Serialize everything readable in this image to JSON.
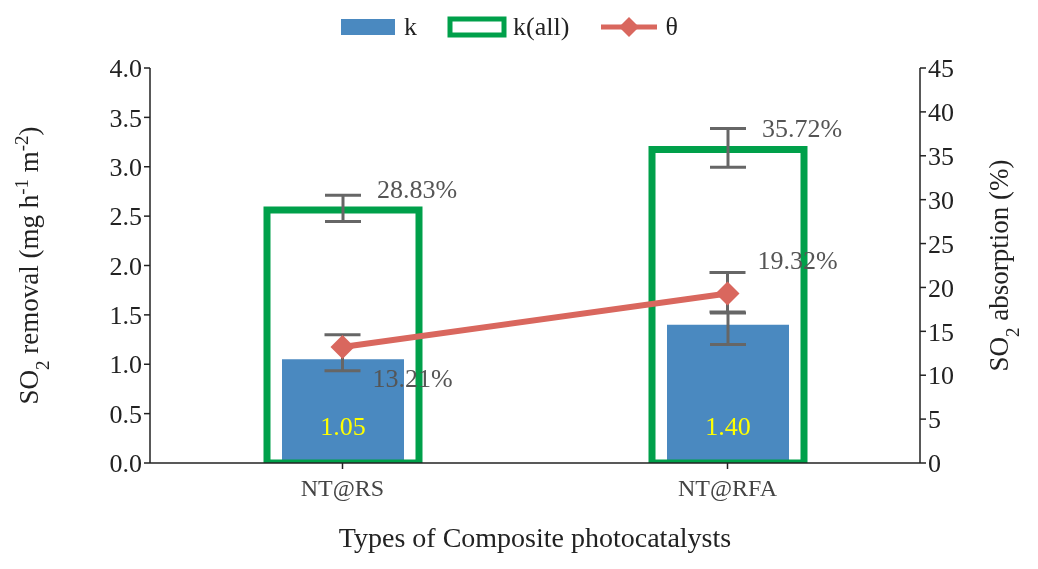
{
  "chart_data": {
    "type": "bar",
    "xlabel": "Types of Composite photocatalysts",
    "ylabel": "SO$_{2}$ removal (mg h$^{-1}$ m$^{-2}$)",
    "y2label": "SO$_{2}$ absorption (%)",
    "categories": [
      "NT@RS",
      "NT@RFA"
    ],
    "series": [
      {
        "name": "k",
        "color": "#4a89c0",
        "values": [
          1.05,
          1.4
        ],
        "value_labels": [
          "1.05",
          "1.40"
        ],
        "errors": [
          null,
          [
            1.2,
            1.52
          ]
        ]
      },
      {
        "name": "k(all)",
        "axis": "y2",
        "color": "#00a04a",
        "values": [
          28.83,
          35.72
        ],
        "value_labels": [
          "28.83%",
          "35.72%"
        ],
        "errors": [
          [
            27.5,
            30.5
          ],
          [
            33.7,
            38.1
          ]
        ]
      },
      {
        "name": "θ",
        "type": "line",
        "axis": "y2",
        "color": "#d9675e",
        "marker": "diamond",
        "values": [
          13.21,
          19.32
        ],
        "value_labels": [
          "13.21%",
          "19.32%"
        ],
        "errors": [
          [
            10.5,
            14.6
          ],
          [
            17.2,
            21.7
          ]
        ]
      }
    ],
    "ylim": [
      0,
      4
    ],
    "yticks": [
      {
        "value": 0,
        "label": "0.0"
      },
      {
        "value": 0.5,
        "label": "0.5"
      },
      {
        "value": 1,
        "label": "1.0"
      },
      {
        "value": 1.5,
        "label": "1.5"
      },
      {
        "value": 2,
        "label": "2.0"
      },
      {
        "value": 2.5,
        "label": "2.5"
      },
      {
        "value": 3,
        "label": "3.0"
      },
      {
        "value": 3.5,
        "label": "3.5"
      },
      {
        "value": 4,
        "label": "4.0"
      }
    ],
    "y2lim": [
      0,
      45
    ],
    "y2ticks": [
      0,
      5,
      10,
      15,
      20,
      25,
      30,
      35,
      40,
      45
    ],
    "grid": false,
    "legend": "top"
  }
}
